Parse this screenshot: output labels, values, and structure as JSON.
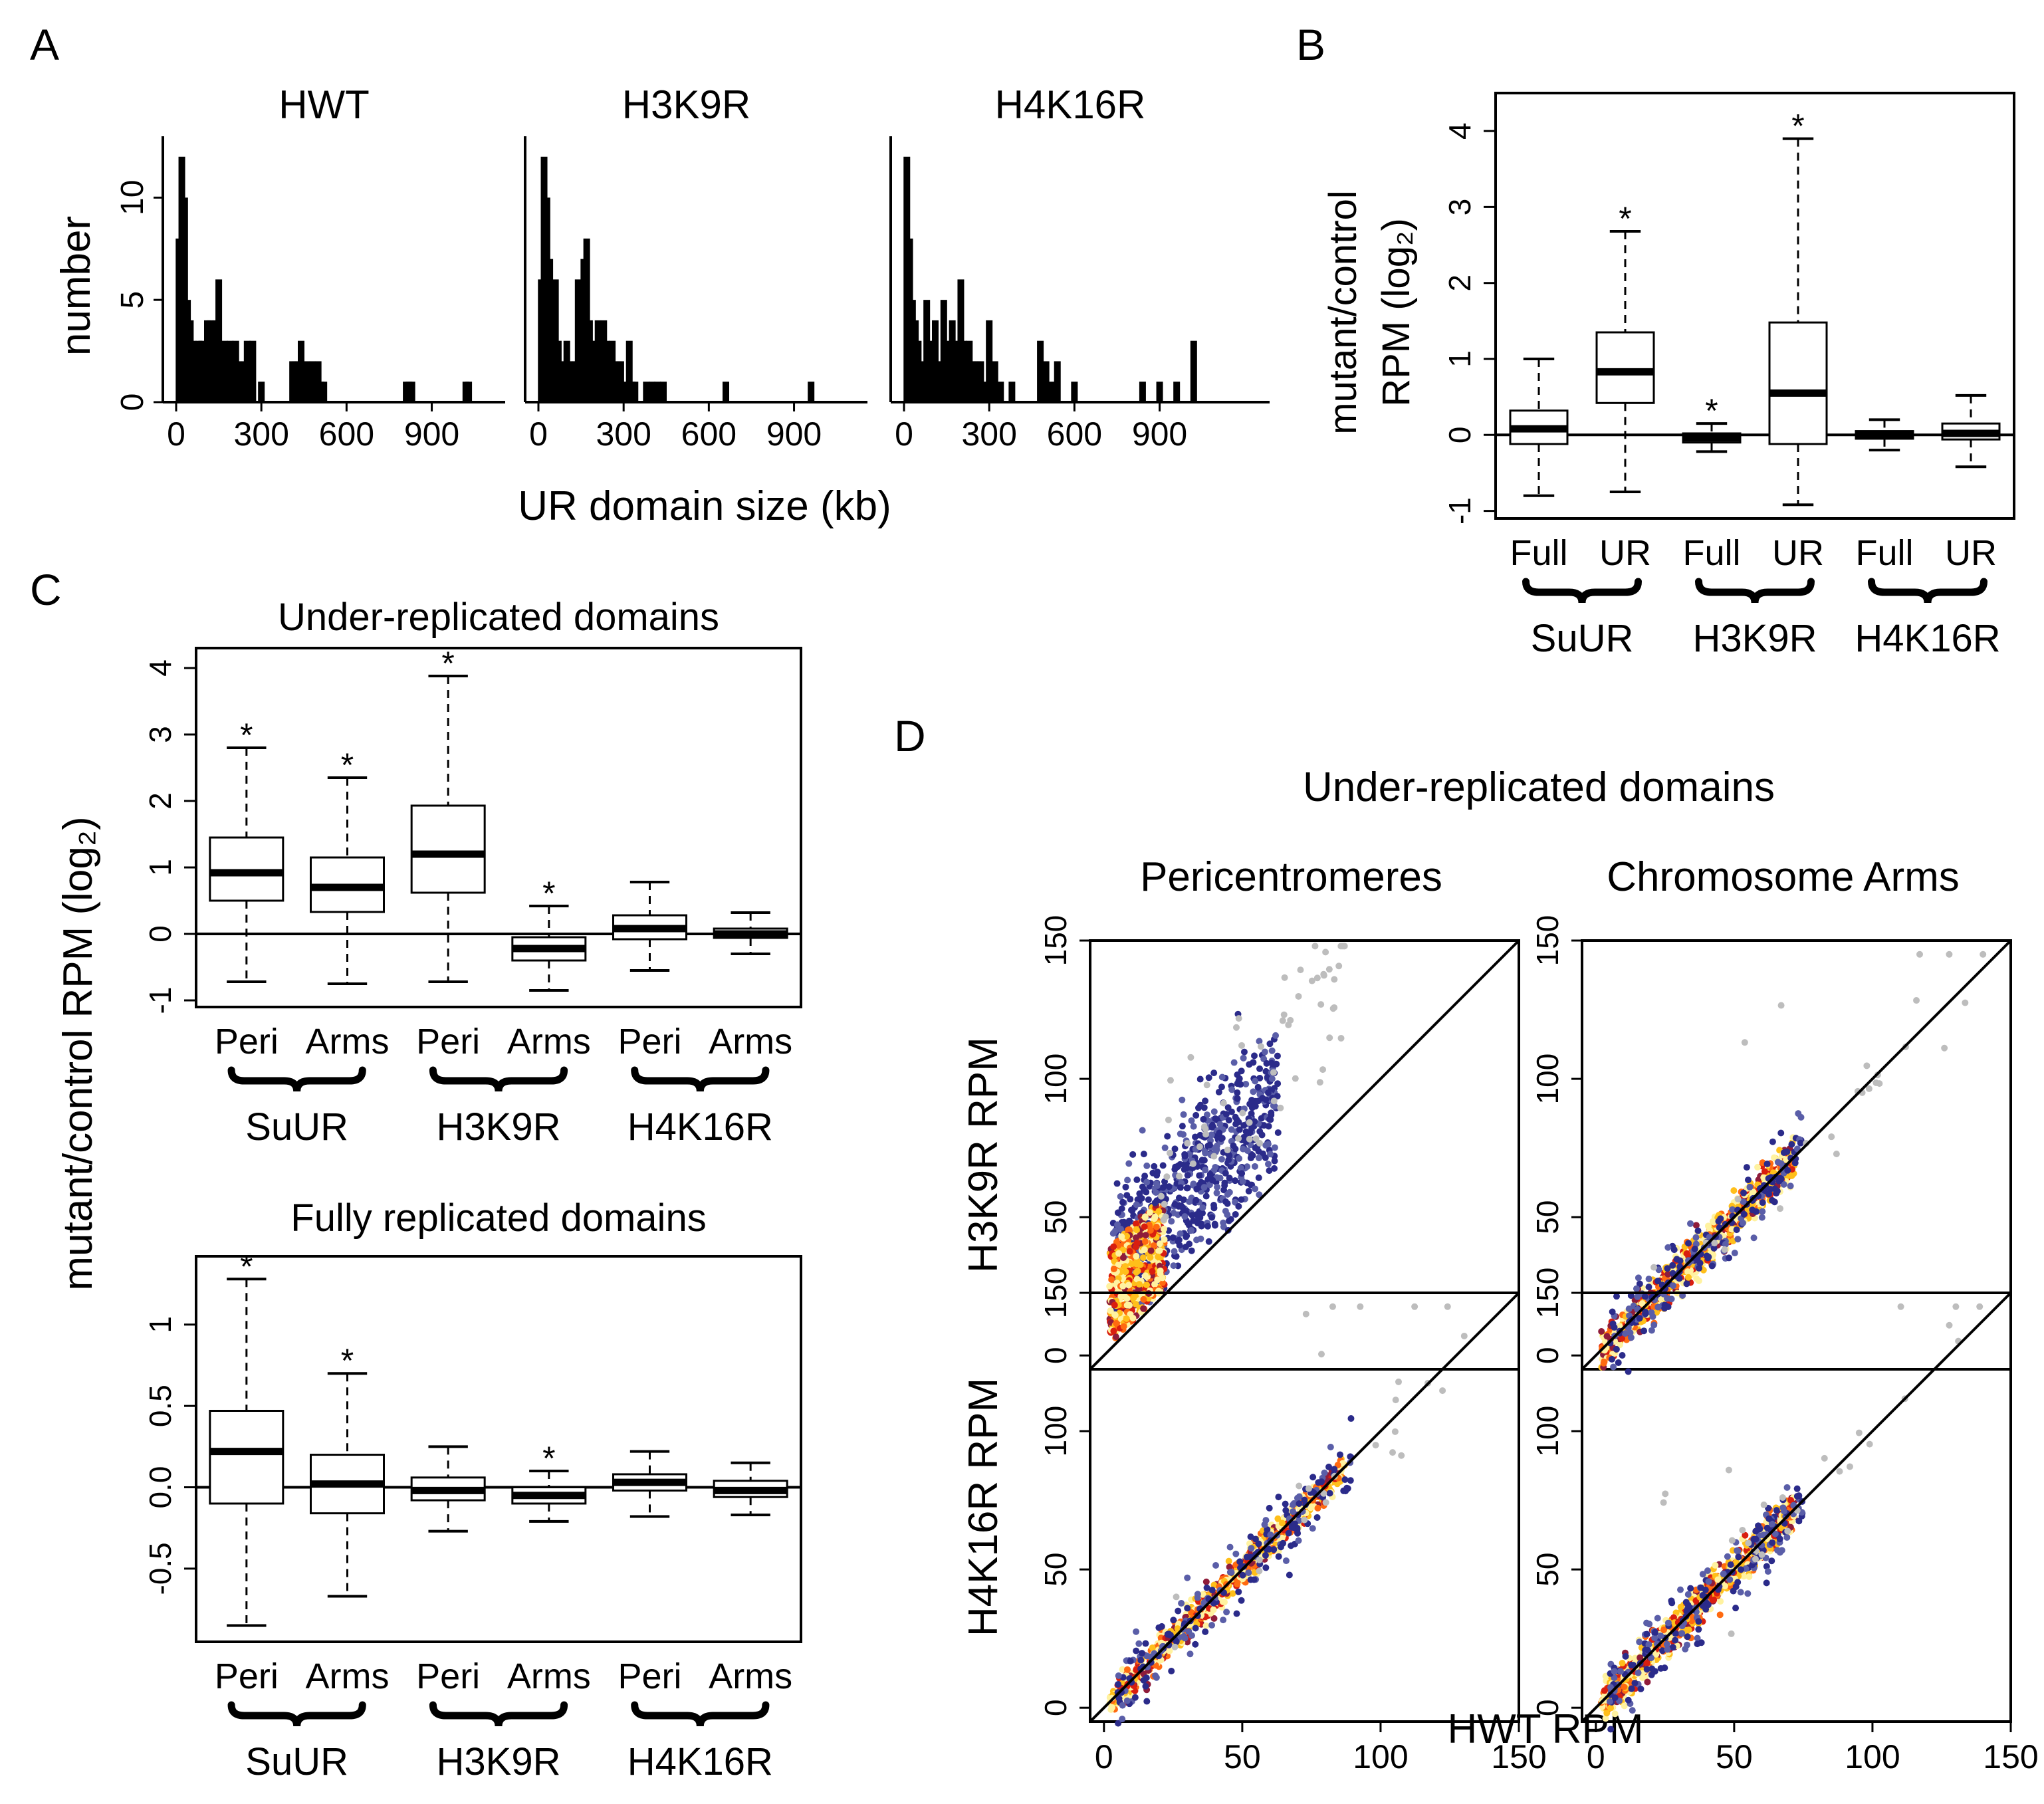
{
  "panel_letters": {
    "A": "A",
    "B": "B",
    "C": "C",
    "D": "D"
  },
  "chart_data": [
    {
      "id": "A",
      "type": "bar",
      "ylabel": "number",
      "xlabel": "UR domain size (kb)",
      "subplots": [
        {
          "title": "HWT",
          "xlim": [
            0,
            1100
          ],
          "ylim": [
            0,
            13
          ],
          "xticks": [
            0,
            300,
            600,
            900
          ],
          "yticks": [
            0,
            5,
            10
          ],
          "x": [
            10,
            20,
            30,
            40,
            50,
            60,
            70,
            80,
            90,
            100,
            110,
            120,
            130,
            140,
            150,
            160,
            170,
            180,
            190,
            200,
            210,
            220,
            230,
            240,
            250,
            260,
            270,
            300,
            320,
            330,
            340,
            350,
            360,
            370,
            380,
            390,
            400,
            410,
            420,
            430,
            440,
            450,
            460,
            470,
            480,
            490,
            500,
            510,
            520,
            530,
            540,
            550,
            560,
            570,
            580,
            590,
            600,
            610,
            620,
            630,
            640,
            650,
            660,
            670,
            680,
            690,
            700,
            710,
            720,
            730,
            740,
            750,
            760,
            770,
            780,
            790,
            800,
            810,
            820,
            830,
            840,
            850,
            860,
            870,
            880,
            890,
            900,
            910,
            920,
            930,
            940,
            950,
            960,
            970,
            980,
            990,
            1000,
            1010,
            1020,
            1030
          ],
          "values": [
            8,
            12,
            10,
            5,
            4,
            3,
            2,
            3,
            3,
            2,
            4,
            4,
            1,
            4,
            6,
            1,
            3,
            2,
            3,
            2,
            3,
            2,
            1,
            2,
            3,
            1,
            3,
            1,
            0,
            0,
            0,
            0,
            0,
            0,
            0,
            0,
            0,
            2,
            2,
            2,
            3,
            1,
            2,
            0,
            2,
            1,
            2,
            1,
            1,
            0,
            0,
            0,
            0,
            0,
            0,
            0,
            0,
            0,
            0,
            0,
            0,
            0,
            0,
            0,
            0,
            0,
            0,
            0,
            0,
            0,
            0,
            0,
            0,
            0,
            0,
            0,
            0,
            1,
            1,
            1,
            0,
            0,
            0,
            0,
            0,
            0,
            0,
            0,
            0,
            0,
            0,
            0,
            0,
            0,
            0,
            0,
            0,
            0,
            1,
            1
          ]
        },
        {
          "title": "H3K9R",
          "xlim": [
            0,
            1100
          ],
          "ylim": [
            0,
            13
          ],
          "xticks": [
            0,
            300,
            600,
            900
          ],
          "yticks": [
            0,
            5,
            10
          ],
          "x": [
            10,
            20,
            30,
            40,
            50,
            60,
            70,
            80,
            90,
            100,
            110,
            120,
            130,
            140,
            150,
            160,
            170,
            180,
            190,
            200,
            210,
            220,
            230,
            240,
            250,
            260,
            270,
            280,
            290,
            300,
            320,
            330,
            340,
            380,
            400,
            420,
            440,
            460,
            480,
            500,
            520,
            540,
            560,
            580,
            600,
            620,
            640,
            660,
            680,
            700,
            720,
            740,
            760,
            780,
            800,
            820,
            840,
            860,
            880,
            900,
            920,
            940,
            960,
            980,
            1000
          ],
          "values": [
            6,
            12,
            10,
            7,
            4,
            6,
            3,
            2,
            2,
            3,
            2,
            2,
            2,
            6,
            5,
            7,
            8,
            4,
            2,
            3,
            4,
            2,
            4,
            3,
            1,
            3,
            2,
            2,
            2,
            1,
            3,
            1,
            1,
            1,
            1,
            1,
            1,
            0,
            0,
            0,
            0,
            0,
            0,
            0,
            0,
            0,
            0,
            1,
            0,
            0,
            0,
            0,
            0,
            0,
            0,
            0,
            0,
            0,
            0,
            0,
            0,
            0,
            1,
            0,
            0
          ]
        },
        {
          "title": "H4K16R",
          "xlim": [
            0,
            1100
          ],
          "ylim": [
            0,
            13
          ],
          "xticks": [
            0,
            300,
            600,
            900
          ],
          "yticks": [
            0,
            5,
            10
          ],
          "x": [
            10,
            20,
            30,
            40,
            50,
            60,
            70,
            80,
            90,
            100,
            110,
            120,
            130,
            140,
            150,
            160,
            170,
            180,
            190,
            200,
            210,
            220,
            230,
            240,
            250,
            260,
            270,
            280,
            300,
            320,
            340,
            360,
            380,
            400,
            420,
            440,
            460,
            480,
            500,
            520,
            540,
            560,
            580,
            600,
            620,
            640,
            660,
            680,
            700,
            720,
            740,
            760,
            780,
            800,
            820,
            840,
            860,
            880,
            900,
            920,
            940,
            960,
            980,
            1000,
            1020,
            1040
          ],
          "values": [
            12,
            8,
            5,
            4,
            3,
            2,
            1,
            5,
            2,
            3,
            4,
            2,
            2,
            5,
            2,
            3,
            4,
            3,
            2,
            6,
            3,
            2,
            3,
            2,
            2,
            2,
            2,
            1,
            4,
            2,
            1,
            0,
            1,
            0,
            0,
            0,
            0,
            3,
            2,
            1,
            2,
            0,
            0,
            1,
            0,
            0,
            0,
            0,
            0,
            0,
            0,
            0,
            0,
            0,
            0,
            1,
            0,
            0,
            1,
            0,
            0,
            1,
            0,
            0,
            3,
            0
          ]
        }
      ]
    },
    {
      "id": "B",
      "type": "box",
      "ylabel": "mutant/control RPM (log₂)",
      "ylim": [
        -1.1,
        4.5
      ],
      "yticks": [
        -1,
        0,
        1,
        2,
        3,
        4
      ],
      "categories": [
        "Full",
        "UR",
        "Full",
        "UR",
        "Full",
        "UR"
      ],
      "groups": [
        "SuUR",
        "H3K9R",
        "H4K16R"
      ],
      "boxes": [
        {
          "whisker_low": -0.8,
          "q1": -0.12,
          "median": 0.08,
          "q3": 0.32,
          "whisker_high": 1.0,
          "star": false
        },
        {
          "whisker_low": -0.75,
          "q1": 0.42,
          "median": 0.83,
          "q3": 1.35,
          "whisker_high": 2.68,
          "star": true
        },
        {
          "whisker_low": -0.22,
          "q1": -0.1,
          "median": -0.04,
          "q3": 0.02,
          "whisker_high": 0.15,
          "star": true
        },
        {
          "whisker_low": -0.92,
          "q1": -0.12,
          "median": 0.55,
          "q3": 1.48,
          "whisker_high": 3.9,
          "star": true
        },
        {
          "whisker_low": -0.2,
          "q1": -0.05,
          "median": 0.0,
          "q3": 0.05,
          "whisker_high": 0.2,
          "star": false
        },
        {
          "whisker_low": -0.42,
          "q1": -0.06,
          "median": 0.02,
          "q3": 0.15,
          "whisker_high": 0.52,
          "star": false
        }
      ],
      "star_label": "*"
    },
    {
      "id": "C",
      "type": "box",
      "ylabel": "mutant/control RPM (log₂)",
      "subplots": [
        {
          "title": "Under-replicated domains",
          "ylim": [
            -1.1,
            4.3
          ],
          "yticks": [
            -1,
            0,
            1,
            2,
            3,
            4
          ],
          "categories": [
            "Peri",
            "Arms",
            "Peri",
            "Arms",
            "Peri",
            "Arms"
          ],
          "groups": [
            "SuUR",
            "H3K9R",
            "H4K16R"
          ],
          "boxes": [
            {
              "whisker_low": -0.72,
              "q1": 0.5,
              "median": 0.92,
              "q3": 1.45,
              "whisker_high": 2.8,
              "star": true
            },
            {
              "whisker_low": -0.75,
              "q1": 0.33,
              "median": 0.7,
              "q3": 1.15,
              "whisker_high": 2.35,
              "star": true
            },
            {
              "whisker_low": -0.72,
              "q1": 0.62,
              "median": 1.2,
              "q3": 1.93,
              "whisker_high": 3.88,
              "star": true
            },
            {
              "whisker_low": -0.85,
              "q1": -0.4,
              "median": -0.22,
              "q3": -0.05,
              "whisker_high": 0.42,
              "star": true
            },
            {
              "whisker_low": -0.55,
              "q1": -0.08,
              "median": 0.08,
              "q3": 0.28,
              "whisker_high": 0.78,
              "star": false
            },
            {
              "whisker_low": -0.3,
              "q1": -0.06,
              "median": 0.0,
              "q3": 0.08,
              "whisker_high": 0.32,
              "star": false
            }
          ]
        },
        {
          "title": "Fully replicated domains",
          "ylim": [
            -0.95,
            1.42
          ],
          "yticks": [
            -0.5,
            0,
            0.5,
            1
          ],
          "yticklabels": [
            "-0.5",
            "0.0",
            "0.5",
            "1"
          ],
          "categories": [
            "Peri",
            "Arms",
            "Peri",
            "Arms",
            "Peri",
            "Arms"
          ],
          "groups": [
            "SuUR",
            "H3K9R",
            "H4K16R"
          ],
          "boxes": [
            {
              "whisker_low": -0.85,
              "q1": -0.1,
              "median": 0.22,
              "q3": 0.47,
              "whisker_high": 1.28,
              "star": true
            },
            {
              "whisker_low": -0.67,
              "q1": -0.16,
              "median": 0.02,
              "q3": 0.2,
              "whisker_high": 0.7,
              "star": true
            },
            {
              "whisker_low": -0.27,
              "q1": -0.08,
              "median": -0.02,
              "q3": 0.06,
              "whisker_high": 0.25,
              "star": false
            },
            {
              "whisker_low": -0.21,
              "q1": -0.1,
              "median": -0.05,
              "q3": 0.0,
              "whisker_high": 0.1,
              "star": true
            },
            {
              "whisker_low": -0.18,
              "q1": -0.02,
              "median": 0.03,
              "q3": 0.08,
              "whisker_high": 0.22,
              "star": false
            },
            {
              "whisker_low": -0.17,
              "q1": -0.06,
              "median": -0.02,
              "q3": 0.04,
              "whisker_high": 0.15,
              "star": false
            }
          ]
        }
      ],
      "star_label": "*"
    },
    {
      "id": "D",
      "type": "scatter",
      "title": "Under-replicated domains",
      "column_titles": [
        "Pericentromeres",
        "Chromosome Arms"
      ],
      "row_ylabels": [
        "H3K9R RPM",
        "H4K16R RPM"
      ],
      "xlabel": "HWT RPM",
      "xlim": [
        -5,
        150
      ],
      "ylim": [
        -5,
        150
      ],
      "xticks": [
        0,
        50,
        100,
        150
      ],
      "yticks": [
        0,
        50,
        100,
        150
      ],
      "reference_line": "y = x",
      "density_colors": [
        "#fff2a0",
        "#ffbf1a",
        "#ff6a10",
        "#d91e0f",
        "#8f1c3a",
        "#2b2b8a",
        "#5a5ea8",
        "#9ea3c4",
        "#bdbdbd"
      ],
      "panels": [
        {
          "row": "H3K9R",
          "col": "Pericentromeres",
          "pattern": "above_diagonal"
        },
        {
          "row": "H3K9R",
          "col": "Chromosome Arms",
          "pattern": "on_diagonal"
        },
        {
          "row": "H4K16R",
          "col": "Pericentromeres",
          "pattern": "on_diagonal"
        },
        {
          "row": "H4K16R",
          "col": "Chromosome Arms",
          "pattern": "on_diagonal"
        }
      ]
    }
  ]
}
